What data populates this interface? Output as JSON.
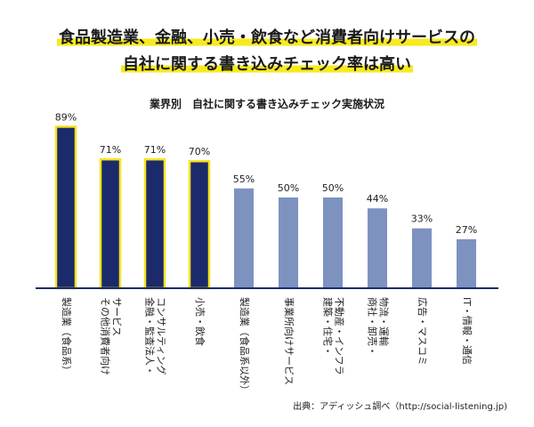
{
  "headline": {
    "line1": "食品製造業、金融、小売・飲食など消費者向けサービスの",
    "line2": "自社に関する書き込みチェック率は高い"
  },
  "source": "出典：アディッシュ調べ（http://social-listening.jp)",
  "colors": {
    "highlight_bar": "#1b2a6b",
    "highlight_border": "#f7e31c",
    "normal_bar": "#7d92bf",
    "baseline": "#1b2a6b"
  },
  "chart_data": {
    "type": "bar",
    "title": "業界別　自社に関する書き込みチェック実施状況",
    "xlabel": "",
    "ylabel": "",
    "ylim": [
      0,
      100
    ],
    "grid": false,
    "categories": [
      "製造業（食品系）",
      "その他消費者向けサービス",
      "金融・監査法人・コンサルティング",
      "小売・飲食",
      "製造業（食品系以外）",
      "事業所向けサービス",
      "建築・住宅・不動産・インフラ",
      "商社・卸売・物流・運輸",
      "広告・マスコミ",
      "IT・情報・通信"
    ],
    "category_lines": [
      [
        "製造業（食品系）"
      ],
      [
        "その他消費者向け",
        "サービス"
      ],
      [
        "金融・監査法人・",
        "コンサルティング"
      ],
      [
        "小売・飲食"
      ],
      [
        "製造業（食品系以外）"
      ],
      [
        "事業所向けサービス"
      ],
      [
        "建築・住宅・",
        "不動産・インフラ"
      ],
      [
        "商社・卸売・",
        "物流・運輸"
      ],
      [
        "広告・マスコミ"
      ],
      [
        "IT・情報・通信"
      ]
    ],
    "values": [
      89,
      71,
      71,
      70,
      55,
      50,
      50,
      44,
      33,
      27
    ],
    "value_labels": [
      "89%",
      "71%",
      "71%",
      "70%",
      "55%",
      "50%",
      "50%",
      "44%",
      "33%",
      "27%"
    ],
    "highlighted": [
      true,
      true,
      true,
      true,
      false,
      false,
      false,
      false,
      false,
      false
    ]
  }
}
